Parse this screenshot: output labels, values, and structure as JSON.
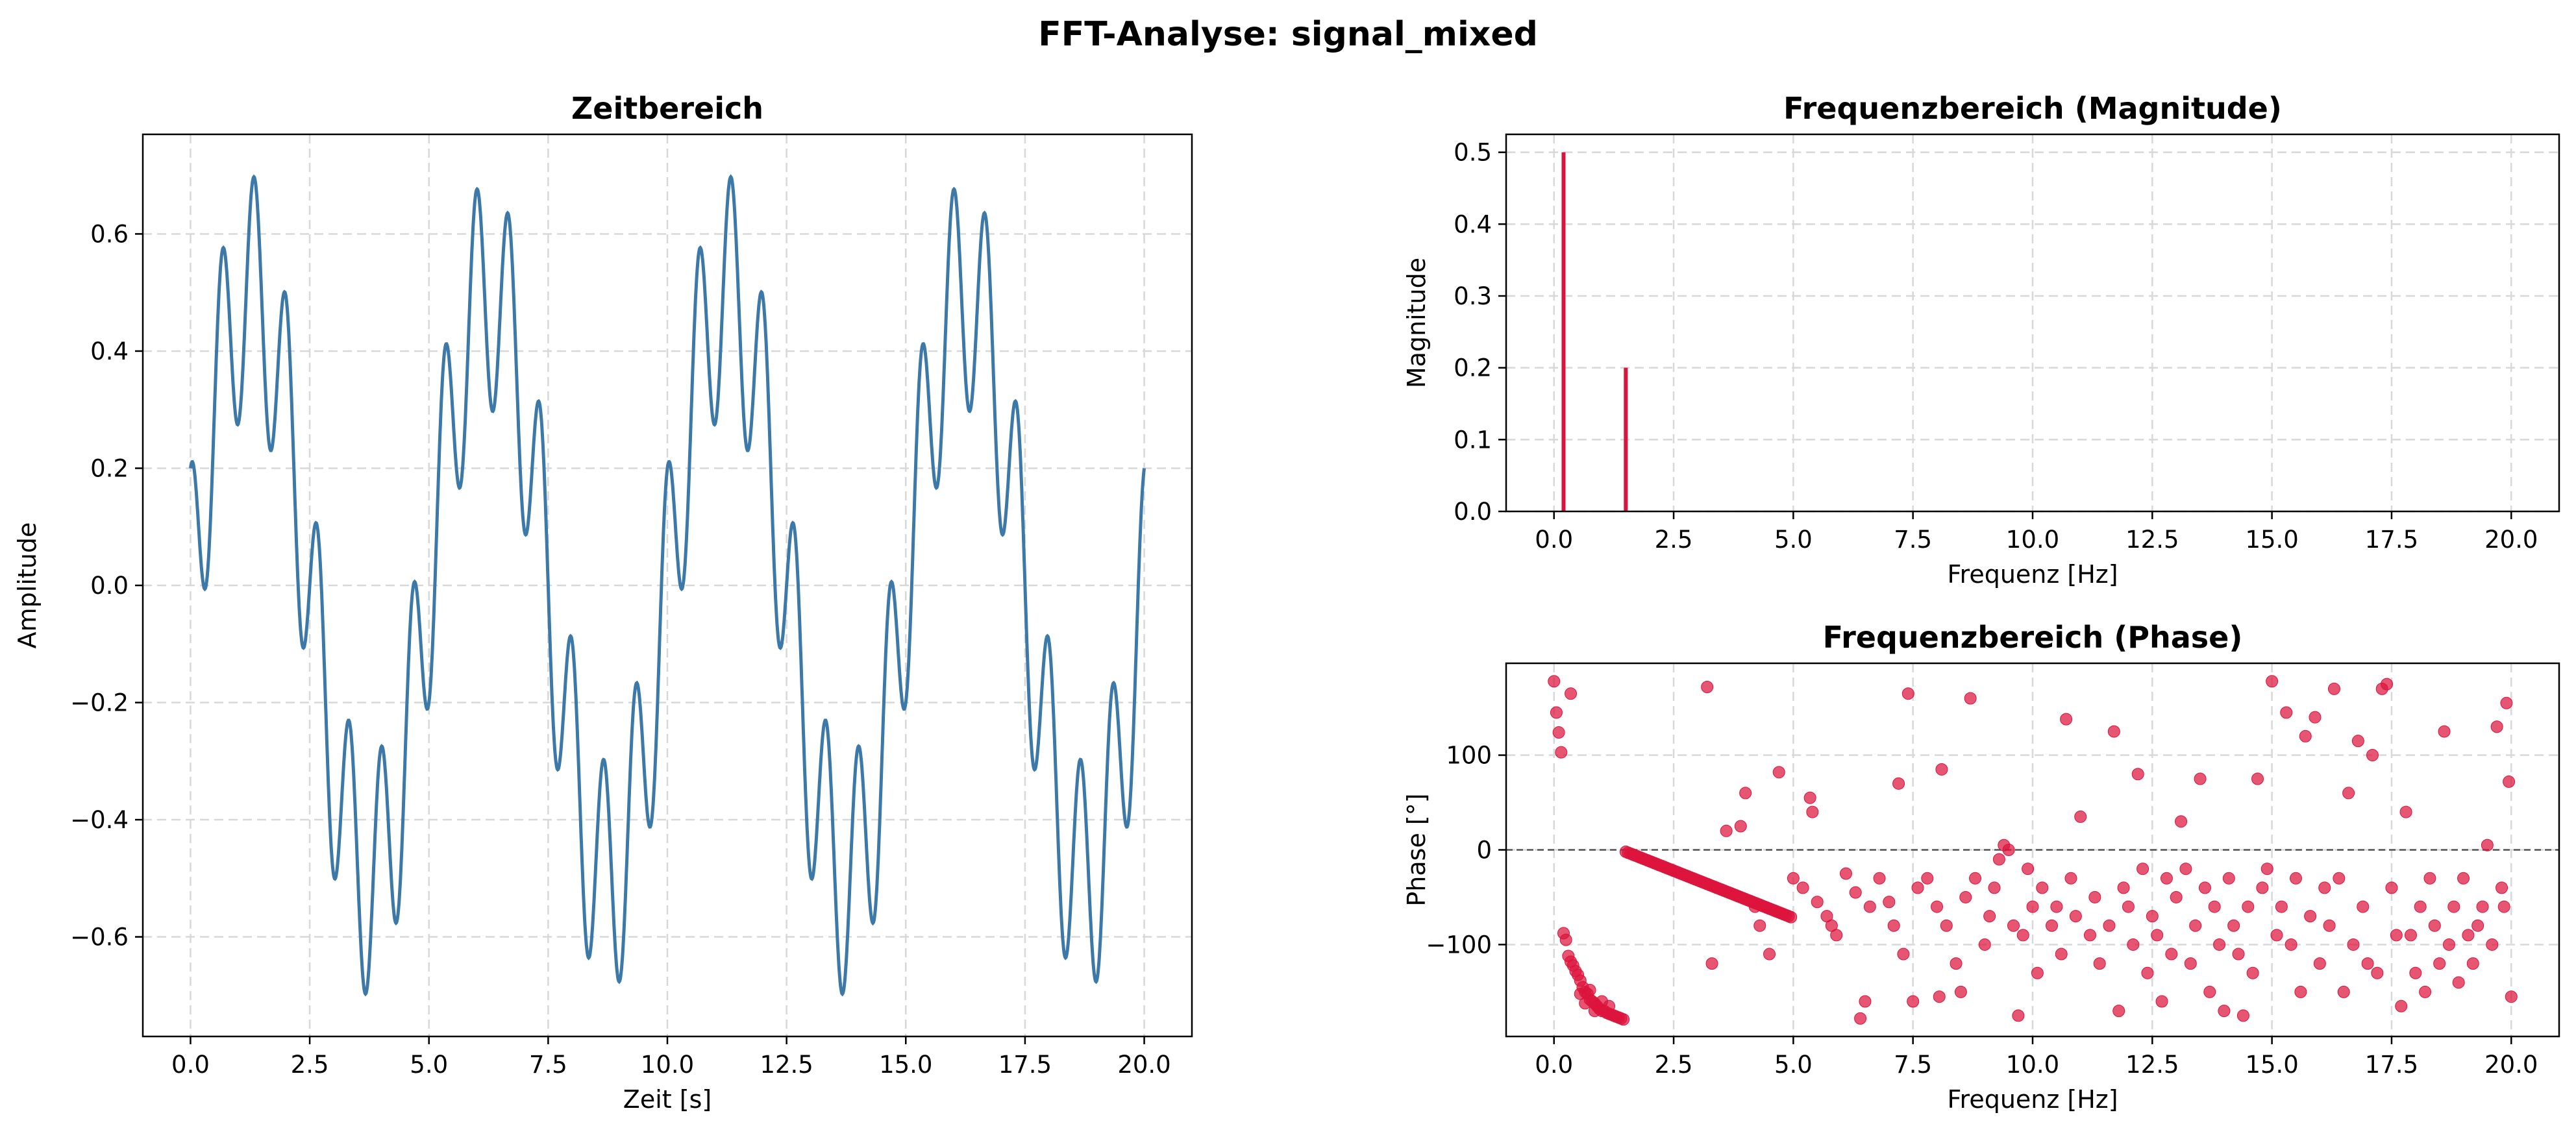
{
  "figure_title": "FFT-Analyse: signal_mixed",
  "colors": {
    "time_line": "#3c78a8",
    "freq": "#dc143c",
    "grid": "#d8d8d8"
  },
  "chart_data": [
    {
      "id": "zeit",
      "type": "line",
      "title": "Zeitbereich",
      "xlabel": "Zeit [s]",
      "ylabel": "Amplitude",
      "xlim": [
        -1,
        21
      ],
      "ylim": [
        -0.77,
        0.77
      ],
      "xticks": [
        0,
        2.5,
        5,
        7.5,
        10,
        12.5,
        15,
        17.5,
        20
      ],
      "xtick_labels": [
        "0.0",
        "2.5",
        "5.0",
        "7.5",
        "10.0",
        "12.5",
        "15.0",
        "17.5",
        "20.0"
      ],
      "yticks": [
        -0.6,
        -0.4,
        -0.2,
        0,
        0.2,
        0.4,
        0.6
      ],
      "ytick_labels": [
        "−0.6",
        "−0.4",
        "−0.2",
        "0.0",
        "0.2",
        "0.4",
        "0.6"
      ],
      "grid": true,
      "signal": [
        {
          "component": "sin",
          "amplitude": 0.5,
          "frequency_hz": 0.2,
          "phase": 0
        },
        {
          "component": "cos",
          "amplitude": 0.2,
          "frequency_hz": 1.5,
          "phase": 0
        }
      ],
      "x_range": [
        0,
        20
      ]
    },
    {
      "id": "magnitude",
      "type": "bar",
      "title": "Frequenzbereich (Magnitude)",
      "xlabel": "Frequenz [Hz]",
      "ylabel": "Magnitude",
      "xlim": [
        -1,
        21
      ],
      "ylim": [
        0,
        0.525
      ],
      "xticks": [
        0,
        2.5,
        5,
        7.5,
        10,
        12.5,
        15,
        17.5,
        20
      ],
      "xtick_labels": [
        "0.0",
        "2.5",
        "5.0",
        "7.5",
        "10.0",
        "12.5",
        "15.0",
        "17.5",
        "20.0"
      ],
      "yticks": [
        0,
        0.1,
        0.2,
        0.3,
        0.4,
        0.5
      ],
      "ytick_labels": [
        "0.0",
        "0.1",
        "0.2",
        "0.3",
        "0.4",
        "0.5"
      ],
      "grid": true,
      "peaks": [
        {
          "x": 0.2,
          "y": 0.5
        },
        {
          "x": 1.5,
          "y": 0.2
        }
      ]
    },
    {
      "id": "phase",
      "type": "scatter",
      "title": "Frequenzbereich (Phase)",
      "xlabel": "Frequenz [Hz]",
      "ylabel": "Phase [°]",
      "xlim": [
        -1,
        21
      ],
      "ylim": [
        -197,
        197
      ],
      "xticks": [
        0,
        2.5,
        5,
        7.5,
        10,
        12.5,
        15,
        17.5,
        20
      ],
      "xtick_labels": [
        "0.0",
        "2.5",
        "5.0",
        "7.5",
        "10.0",
        "12.5",
        "15.0",
        "17.5",
        "20.0"
      ],
      "yticks": [
        -100,
        0,
        100
      ],
      "ytick_labels": [
        "−100",
        "0",
        "100"
      ],
      "grid": true,
      "reference_line_y": 0,
      "points": [
        [
          0.0,
          178
        ],
        [
          0.05,
          145
        ],
        [
          0.1,
          124
        ],
        [
          0.15,
          103
        ],
        [
          0.2,
          -88
        ],
        [
          0.25,
          -95
        ],
        [
          0.3,
          -112
        ],
        [
          0.35,
          -118
        ],
        [
          0.4,
          -122
        ],
        [
          0.45,
          -128
        ],
        [
          0.5,
          -132
        ],
        [
          0.55,
          -138
        ],
        [
          0.6,
          -145
        ],
        [
          0.65,
          -150
        ],
        [
          0.7,
          -152
        ],
        [
          0.75,
          -158
        ],
        [
          0.8,
          -160
        ],
        [
          0.85,
          -162
        ],
        [
          0.9,
          -165
        ],
        [
          0.95,
          -168
        ],
        [
          1.0,
          -170
        ],
        [
          1.05,
          -170
        ],
        [
          1.1,
          -172
        ],
        [
          1.15,
          -173
        ],
        [
          1.2,
          -174
        ],
        [
          1.25,
          -175
        ],
        [
          1.3,
          -176
        ],
        [
          1.35,
          -177
        ],
        [
          1.4,
          -178
        ],
        [
          1.45,
          -179
        ],
        [
          0.55,
          -152
        ],
        [
          0.65,
          -162
        ],
        [
          0.75,
          -148
        ],
        [
          0.85,
          -170
        ],
        [
          1.0,
          -160
        ],
        [
          1.15,
          -165
        ],
        [
          0.35,
          165
        ],
        [
          1.5,
          -2
        ],
        [
          1.55,
          -3
        ],
        [
          1.6,
          -4
        ],
        [
          1.65,
          -5
        ],
        [
          1.7,
          -6
        ],
        [
          1.75,
          -7
        ],
        [
          1.8,
          -8
        ],
        [
          1.85,
          -9
        ],
        [
          1.9,
          -10
        ],
        [
          1.95,
          -11
        ],
        [
          2.0,
          -12
        ],
        [
          2.05,
          -13
        ],
        [
          2.1,
          -14
        ],
        [
          2.15,
          -15
        ],
        [
          2.2,
          -16
        ],
        [
          2.25,
          -17
        ],
        [
          2.3,
          -18
        ],
        [
          2.35,
          -19
        ],
        [
          2.4,
          -20
        ],
        [
          2.45,
          -21
        ],
        [
          2.5,
          -22
        ],
        [
          2.55,
          -23
        ],
        [
          2.6,
          -24
        ],
        [
          2.65,
          -25
        ],
        [
          2.7,
          -26
        ],
        [
          2.75,
          -27
        ],
        [
          2.8,
          -28
        ],
        [
          2.85,
          -29
        ],
        [
          2.9,
          -30
        ],
        [
          2.95,
          -31
        ],
        [
          3.0,
          -32
        ],
        [
          3.05,
          -33
        ],
        [
          3.1,
          -34
        ],
        [
          3.15,
          -35
        ],
        [
          3.2,
          -36
        ],
        [
          3.25,
          -37
        ],
        [
          3.3,
          -38
        ],
        [
          3.35,
          -39
        ],
        [
          3.4,
          -40
        ],
        [
          3.45,
          -41
        ],
        [
          3.5,
          -42
        ],
        [
          3.55,
          -43
        ],
        [
          3.6,
          -44
        ],
        [
          3.65,
          -45
        ],
        [
          3.7,
          -46
        ],
        [
          3.75,
          -47
        ],
        [
          3.8,
          -48
        ],
        [
          3.85,
          -49
        ],
        [
          3.9,
          -50
        ],
        [
          3.95,
          -51
        ],
        [
          4.0,
          -52
        ],
        [
          4.05,
          -53
        ],
        [
          4.1,
          -54
        ],
        [
          4.15,
          -55
        ],
        [
          4.2,
          -56
        ],
        [
          4.25,
          -57
        ],
        [
          4.3,
          -58
        ],
        [
          4.35,
          -59
        ],
        [
          4.4,
          -60
        ],
        [
          4.45,
          -61
        ],
        [
          4.5,
          -62
        ],
        [
          4.55,
          -63
        ],
        [
          4.6,
          -64
        ],
        [
          4.65,
          -65
        ],
        [
          4.7,
          -66
        ],
        [
          4.75,
          -67
        ],
        [
          4.8,
          -68
        ],
        [
          4.85,
          -69
        ],
        [
          4.9,
          -70
        ],
        [
          4.95,
          -71
        ],
        [
          3.2,
          172
        ],
        [
          3.3,
          -120
        ],
        [
          3.6,
          20
        ],
        [
          3.9,
          25
        ],
        [
          4.0,
          60
        ],
        [
          4.2,
          -60
        ],
        [
          4.3,
          -80
        ],
        [
          4.5,
          -110
        ],
        [
          4.7,
          82
        ],
        [
          5.0,
          -30
        ],
        [
          5.2,
          -40
        ],
        [
          5.35,
          55
        ],
        [
          5.4,
          40
        ],
        [
          5.5,
          -55
        ],
        [
          5.7,
          -70
        ],
        [
          5.8,
          -80
        ],
        [
          5.9,
          -90
        ],
        [
          6.1,
          -25
        ],
        [
          6.3,
          -45
        ],
        [
          6.4,
          -178
        ],
        [
          6.5,
          -160
        ],
        [
          6.6,
          -60
        ],
        [
          6.8,
          -30
        ],
        [
          7.0,
          -55
        ],
        [
          7.1,
          -80
        ],
        [
          7.2,
          70
        ],
        [
          7.3,
          -110
        ],
        [
          7.4,
          165
        ],
        [
          7.5,
          -160
        ],
        [
          7.6,
          -40
        ],
        [
          7.8,
          -30
        ],
        [
          8.0,
          -60
        ],
        [
          8.05,
          -155
        ],
        [
          8.1,
          85
        ],
        [
          8.2,
          -80
        ],
        [
          8.4,
          -120
        ],
        [
          8.5,
          -150
        ],
        [
          8.6,
          -50
        ],
        [
          8.7,
          160
        ],
        [
          8.8,
          -30
        ],
        [
          9.0,
          -100
        ],
        [
          9.1,
          -70
        ],
        [
          9.2,
          -40
        ],
        [
          9.3,
          -10
        ],
        [
          9.4,
          5
        ],
        [
          9.5,
          0
        ],
        [
          9.6,
          -80
        ],
        [
          9.7,
          -175
        ],
        [
          9.8,
          -90
        ],
        [
          9.9,
          -20
        ],
        [
          10.0,
          -60
        ],
        [
          10.1,
          -130
        ],
        [
          10.2,
          -40
        ],
        [
          10.4,
          -80
        ],
        [
          10.5,
          -60
        ],
        [
          10.6,
          -110
        ],
        [
          10.7,
          138
        ],
        [
          10.8,
          -30
        ],
        [
          10.9,
          -70
        ],
        [
          11.0,
          35
        ],
        [
          11.2,
          -90
        ],
        [
          11.3,
          -50
        ],
        [
          11.4,
          -120
        ],
        [
          11.6,
          -80
        ],
        [
          11.7,
          125
        ],
        [
          11.8,
          -170
        ],
        [
          11.9,
          -40
        ],
        [
          12.0,
          -60
        ],
        [
          12.1,
          -100
        ],
        [
          12.2,
          80
        ],
        [
          12.3,
          -20
        ],
        [
          12.4,
          -130
        ],
        [
          12.5,
          -70
        ],
        [
          12.6,
          -90
        ],
        [
          12.7,
          -160
        ],
        [
          12.8,
          -30
        ],
        [
          12.9,
          -110
        ],
        [
          13.0,
          -50
        ],
        [
          13.1,
          30
        ],
        [
          13.2,
          -20
        ],
        [
          13.3,
          -120
        ],
        [
          13.4,
          -80
        ],
        [
          13.5,
          75
        ],
        [
          13.6,
          -40
        ],
        [
          13.7,
          -150
        ],
        [
          13.8,
          -60
        ],
        [
          13.9,
          -100
        ],
        [
          14.0,
          -170
        ],
        [
          14.1,
          -30
        ],
        [
          14.2,
          -80
        ],
        [
          14.3,
          -110
        ],
        [
          14.4,
          -175
        ],
        [
          14.5,
          -60
        ],
        [
          14.6,
          -130
        ],
        [
          14.7,
          75
        ],
        [
          14.8,
          -40
        ],
        [
          14.9,
          -20
        ],
        [
          15.0,
          178
        ],
        [
          15.1,
          -90
        ],
        [
          15.2,
          -60
        ],
        [
          15.3,
          145
        ],
        [
          15.4,
          -100
        ],
        [
          15.5,
          -30
        ],
        [
          15.6,
          -150
        ],
        [
          15.7,
          120
        ],
        [
          15.8,
          -70
        ],
        [
          15.9,
          140
        ],
        [
          16.0,
          -120
        ],
        [
          16.1,
          -40
        ],
        [
          16.2,
          -80
        ],
        [
          16.3,
          170
        ],
        [
          16.4,
          -30
        ],
        [
          16.5,
          -150
        ],
        [
          16.6,
          60
        ],
        [
          16.7,
          -100
        ],
        [
          16.8,
          115
        ],
        [
          16.9,
          -60
        ],
        [
          17.0,
          -120
        ],
        [
          17.1,
          100
        ],
        [
          17.2,
          -130
        ],
        [
          17.3,
          170
        ],
        [
          17.4,
          175
        ],
        [
          17.5,
          -40
        ],
        [
          17.6,
          -90
        ],
        [
          17.7,
          -165
        ],
        [
          17.8,
          40
        ],
        [
          17.9,
          -90
        ],
        [
          18.0,
          -130
        ],
        [
          18.1,
          -60
        ],
        [
          18.2,
          -150
        ],
        [
          18.3,
          -30
        ],
        [
          18.4,
          -80
        ],
        [
          18.5,
          -120
        ],
        [
          18.6,
          125
        ],
        [
          18.7,
          -100
        ],
        [
          18.8,
          -60
        ],
        [
          18.9,
          -140
        ],
        [
          19.0,
          -30
        ],
        [
          19.1,
          -90
        ],
        [
          19.2,
          -120
        ],
        [
          19.3,
          -80
        ],
        [
          19.4,
          -60
        ],
        [
          19.5,
          5
        ],
        [
          19.6,
          -100
        ],
        [
          19.7,
          130
        ],
        [
          19.8,
          -40
        ],
        [
          19.9,
          155
        ],
        [
          20.0,
          -155
        ],
        [
          19.95,
          72
        ],
        [
          19.85,
          -60
        ]
      ]
    }
  ]
}
